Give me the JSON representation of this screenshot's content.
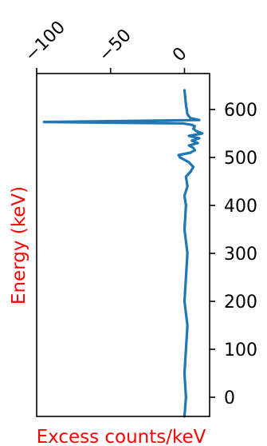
{
  "chart_data": {
    "type": "line",
    "orientation": "rotated",
    "title": "",
    "xlabel": "Excess counts/keV",
    "ylabel": "Energy (keV)",
    "label_color": "#ff0000",
    "line_color": "#1f77b4",
    "grid": false,
    "xlim": [
      -100,
      17
    ],
    "ylim": [
      -40,
      675
    ],
    "x_ticks": [
      -100,
      -50,
      0
    ],
    "x_tick_labels": [
      "−100",
      "−50",
      "0"
    ],
    "y_ticks": [
      0,
      100,
      200,
      300,
      400,
      500,
      600
    ],
    "y_tick_labels": [
      "0",
      "100",
      "200",
      "300",
      "400",
      "500",
      "600"
    ],
    "series": [
      {
        "energy": [
          -40,
          0,
          50,
          100,
          150,
          200,
          250,
          300,
          350,
          400,
          420,
          440,
          460,
          470,
          480,
          490,
          500,
          505,
          510,
          515,
          520,
          525,
          530,
          535,
          540,
          545,
          550,
          555,
          560,
          565,
          568,
          571,
          574,
          578,
          582,
          590,
          610,
          640
        ],
        "excess": [
          0,
          1,
          0,
          1,
          2,
          0,
          1,
          2,
          0,
          1,
          0,
          2,
          1,
          4,
          6,
          3,
          -3,
          -4,
          4,
          7,
          6,
          3,
          9,
          5,
          10,
          3,
          12,
          8,
          6,
          7,
          5,
          -1,
          -95,
          10,
          4,
          2,
          1,
          0
        ]
      }
    ]
  }
}
